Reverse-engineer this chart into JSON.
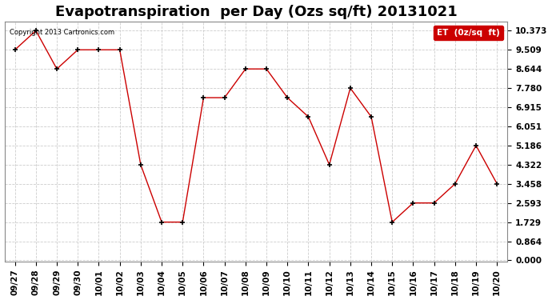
{
  "title": "Evapotranspiration  per Day (Ozs sq/ft) 20131021",
  "x_labels": [
    "09/27",
    "09/28",
    "09/29",
    "09/30",
    "10/01",
    "10/02",
    "10/03",
    "10/04",
    "10/05",
    "10/06",
    "10/07",
    "10/08",
    "10/09",
    "10/10",
    "10/11",
    "10/12",
    "10/13",
    "10/14",
    "10/15",
    "10/16",
    "10/17",
    "10/18",
    "10/19",
    "10/20"
  ],
  "y_values": [
    9.509,
    10.373,
    8.644,
    9.509,
    9.509,
    9.509,
    4.322,
    1.729,
    1.729,
    7.347,
    7.347,
    8.644,
    8.644,
    7.347,
    6.483,
    4.322,
    7.78,
    6.483,
    1.729,
    2.593,
    2.593,
    3.458,
    5.186,
    3.458
  ],
  "line_color": "#cc0000",
  "marker_color": "#000000",
  "background_color": "#ffffff",
  "grid_color": "#cccccc",
  "y_ticks": [
    0.0,
    0.864,
    1.729,
    2.593,
    3.458,
    4.322,
    5.186,
    6.051,
    6.915,
    7.78,
    8.644,
    9.509,
    10.373
  ],
  "legend_label": "ET  (0z/sq  ft)",
  "legend_bg": "#cc0000",
  "legend_text_color": "#ffffff",
  "copyright_text": "Copyright 2013 Cartronics.com",
  "title_fontsize": 13,
  "tick_fontsize": 7.5,
  "figsize": [
    6.9,
    3.75
  ],
  "dpi": 100
}
